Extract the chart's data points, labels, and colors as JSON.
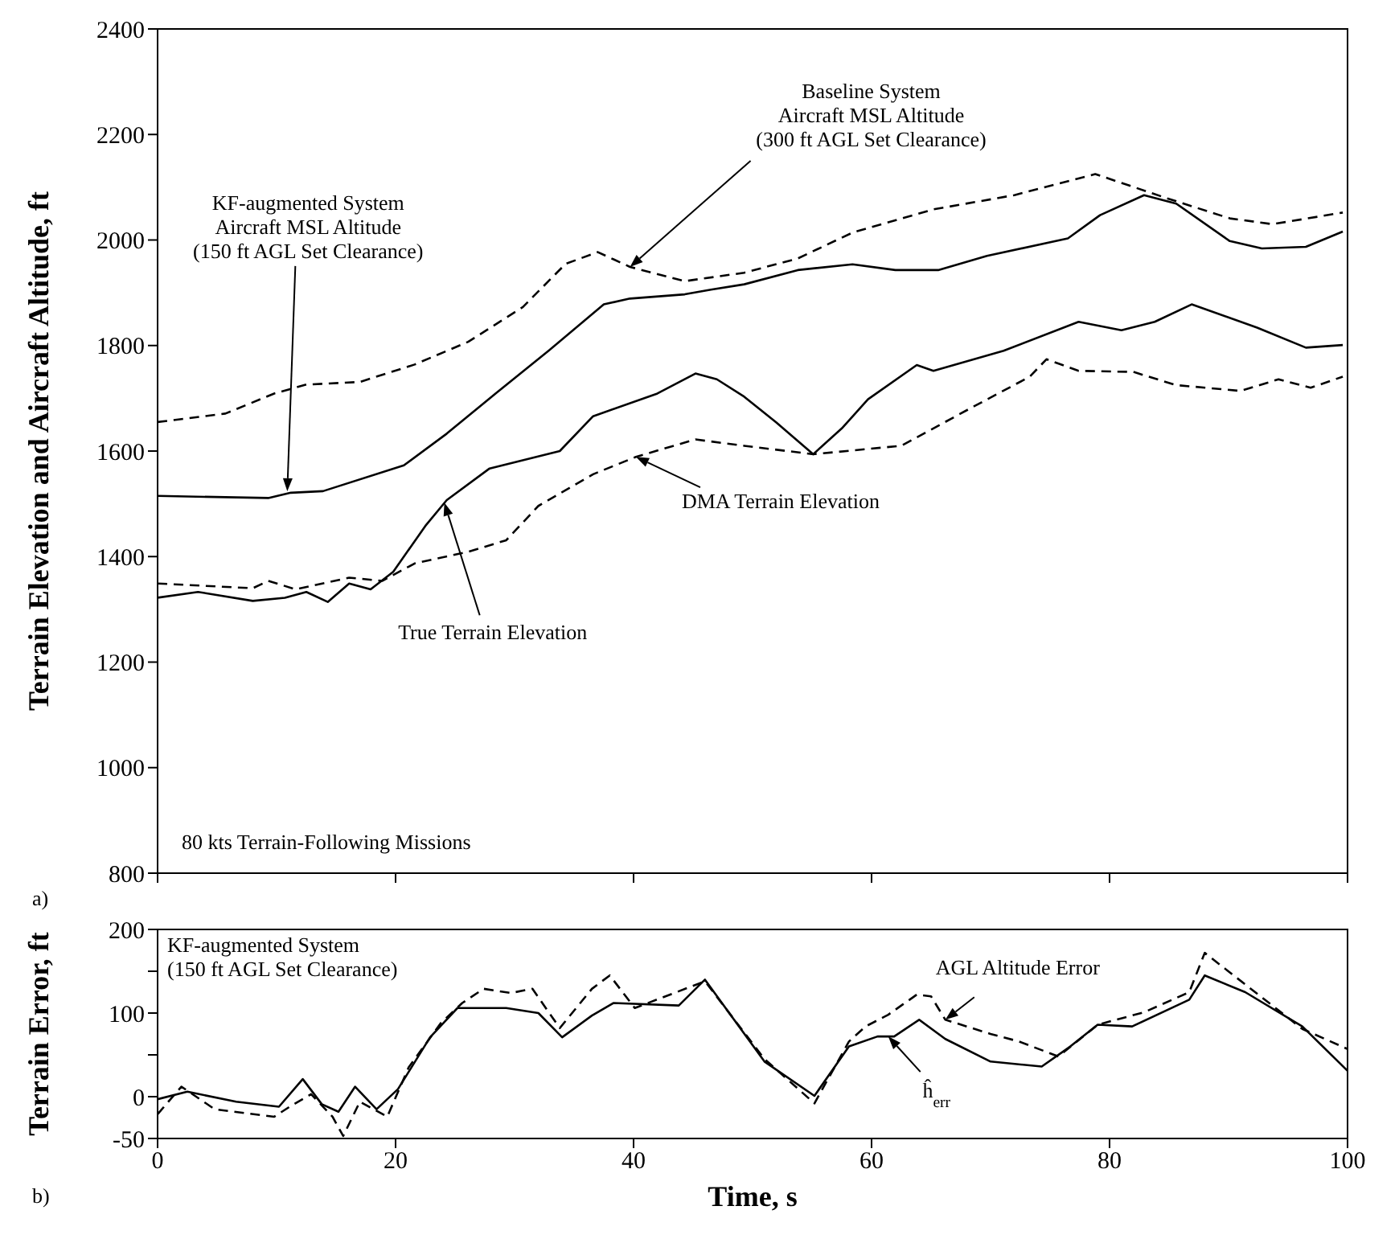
{
  "chart_data": [
    {
      "type": "line",
      "ylabel": "Terrain Elevation and Aircraft Altitude, ft",
      "xlim": [
        0,
        100
      ],
      "xticks": [
        0,
        20,
        40,
        60,
        80,
        100
      ],
      "ylim": [
        800,
        2400
      ],
      "yticks": [
        800,
        1000,
        1200,
        1400,
        1600,
        1800,
        2000,
        2200,
        2400
      ],
      "tick_labels": "y",
      "annotations": [
        {
          "text": "KF-augmented System\nAircraft MSL Altitude\n(150 ft AGL Set Clearance)",
          "x": 10.9,
          "y": 1524
        },
        {
          "text": "Baseline System\nAircraft MSL Altitude\n(300 ft AGL Set Clearance)",
          "x": 39.7,
          "y": 1949
        },
        {
          "text": "True Terrain Elevation",
          "x": 24.1,
          "y": 1502
        },
        {
          "text": "DMA Terrain Elevation",
          "x": 40.2,
          "y": 1589
        },
        "80 kts Terrain-Following Missions",
        "a)"
      ],
      "series": [
        {
          "color": "#000000",
          "line_style": "solid",
          "x": [
            0,
            9.3,
            11.2,
            13.9,
            20.7,
            24.3,
            28.4,
            32.9,
            37.5,
            39.7,
            44.3,
            46.5,
            49.3,
            53.8,
            58.4,
            62,
            65.6,
            69.7,
            76.5,
            79.2,
            82.9,
            85.6,
            90.1,
            92.8,
            96.5,
            99.6
          ],
          "values": [
            1515,
            1511,
            1521,
            1524,
            1573,
            1633,
            1709,
            1791,
            1878,
            1889,
            1897,
            1906,
            1916,
            1943,
            1954,
            1943,
            1943,
            1970,
            2003,
            2047,
            2085,
            2069,
            1998,
            1984,
            1987,
            2016
          ]
        },
        {
          "color": "#000000",
          "line_style": "dashed",
          "x": [
            0,
            5.7,
            9.8,
            12.5,
            17,
            21.6,
            26.1,
            30.7,
            34.3,
            37,
            39.7,
            44.3,
            49.3,
            53.8,
            58.4,
            65.2,
            72,
            78.8,
            84.7,
            90.1,
            93.7,
            99.6
          ],
          "values": [
            1655,
            1671,
            1709,
            1726,
            1731,
            1764,
            1807,
            1873,
            1955,
            1977,
            1949,
            1922,
            1938,
            1965,
            2014,
            2058,
            2085,
            2125,
            2080,
            2041,
            2030,
            2052
          ]
        },
        {
          "color": "#000000",
          "line_style": "solid",
          "x": [
            0,
            3.4,
            8,
            10.7,
            12.5,
            14.3,
            16.1,
            17.9,
            19.8,
            22.5,
            24.3,
            27.9,
            33.8,
            36.6,
            42,
            45.2,
            47,
            49.3,
            52,
            55.1,
            57.5,
            59.7,
            63.8,
            65.2,
            71.1,
            77.4,
            81,
            83.8,
            86.9,
            92.4,
            96.5,
            99.6
          ],
          "values": [
            1322,
            1333,
            1316,
            1322,
            1333,
            1314,
            1349,
            1338,
            1371,
            1458,
            1507,
            1567,
            1600,
            1666,
            1709,
            1747,
            1736,
            1703,
            1654,
            1594,
            1643,
            1698,
            1763,
            1752,
            1790,
            1845,
            1829,
            1845,
            1878,
            1834,
            1796,
            1801
          ]
        },
        {
          "color": "#000000",
          "line_style": "dashed",
          "x": [
            0,
            8,
            9.3,
            11.6,
            16.1,
            18.9,
            21.6,
            26.1,
            29.3,
            32,
            36.6,
            40.2,
            45.2,
            49.3,
            55.1,
            62.5,
            68.3,
            73.3,
            74.7,
            77.4,
            82,
            85.6,
            91,
            94.2,
            96.9,
            99.6
          ],
          "values": [
            1349,
            1340,
            1354,
            1338,
            1360,
            1354,
            1387,
            1409,
            1431,
            1496,
            1556,
            1589,
            1622,
            1610,
            1594,
            1610,
            1681,
            1741,
            1774,
            1752,
            1750,
            1725,
            1714,
            1736,
            1720,
            1741
          ]
        }
      ]
    },
    {
      "type": "line",
      "xlabel": "Time, s",
      "ylabel": "Terrain Error, ft",
      "xlim": [
        0,
        100
      ],
      "xticks": [
        0,
        20,
        40,
        60,
        80,
        100
      ],
      "ylim": [
        -50,
        200
      ],
      "yticks": [
        -50,
        0,
        {
          "value": 50,
          "label": null
        },
        100,
        {
          "value": 150,
          "label": null
        },
        200
      ],
      "annotations": [
        "KF-augmented System\n(150 ft AGL Set Clearance)",
        {
          "text": "AGL Altitude Error",
          "x": 66.2,
          "y": 92
        },
        {
          "text": "ĥ$_{err}$",
          "x": 61.4,
          "y": 72
        },
        "b)"
      ],
      "series": [
        {
          "color": "#000000",
          "line_style": "solid",
          "x": [
            0,
            2.5,
            6.6,
            10.2,
            12.2,
            13.8,
            15.2,
            16.6,
            18.4,
            20.2,
            22.9,
            25.2,
            29.3,
            32,
            34,
            36.5,
            38.3,
            43.8,
            46,
            51,
            55.2,
            58.1,
            60.5,
            61.9,
            64,
            66.2,
            70,
            74.3,
            76.7,
            79,
            81.9,
            86.7,
            88,
            91.4,
            96.2,
            100
          ],
          "values": [
            -3,
            6,
            -6,
            -12,
            21,
            -9,
            -18,
            12,
            -15,
            9,
            71,
            106,
            106,
            100,
            71,
            97,
            112,
            109,
            140,
            42,
            1,
            60,
            72,
            72,
            92,
            69,
            42,
            36,
            60,
            86,
            84,
            116,
            145,
            125,
            84,
            31
          ]
        },
        {
          "color": "#000000",
          "line_style": "dashed",
          "x": [
            0,
            2,
            4.8,
            9.8,
            11.1,
            12.9,
            14.7,
            15.6,
            17,
            19.3,
            21.1,
            23.8,
            25.6,
            27.4,
            29.7,
            31.5,
            33.8,
            36.5,
            38,
            40.1,
            46,
            51,
            55.2,
            58.1,
            59.5,
            61.4,
            63.8,
            65,
            66.2,
            70,
            72.4,
            75.7,
            79,
            82.9,
            86.7,
            88,
            96.2,
            100
          ],
          "values": [
            -21,
            12,
            -15,
            -24,
            -12,
            3,
            -24,
            -47,
            -6,
            -24,
            35,
            88,
            112,
            129,
            124,
            129,
            82,
            129,
            145,
            106,
            138,
            45,
            -8,
            66,
            84,
            98,
            122,
            120,
            92,
            75,
            66,
            48,
            86,
            101,
            125,
            172,
            81,
            57
          ]
        }
      ]
    }
  ]
}
